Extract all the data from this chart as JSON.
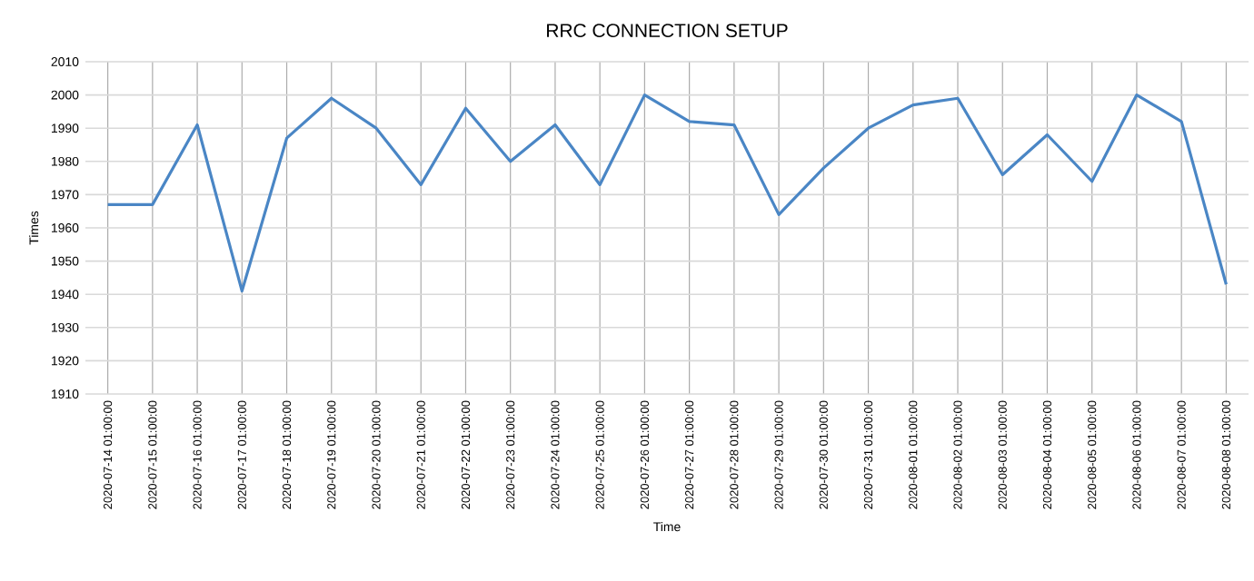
{
  "chart_data": {
    "type": "line",
    "title": "RRC CONNECTION SETUP",
    "xlabel": "Time",
    "ylabel": "Times",
    "categories": [
      "2020-07-14 01:00:00",
      "2020-07-15 01:00:00",
      "2020-07-16 01:00:00",
      "2020-07-17 01:00:00",
      "2020-07-18 01:00:00",
      "2020-07-19 01:00:00",
      "2020-07-20 01:00:00",
      "2020-07-21 01:00:00",
      "2020-07-22 01:00:00",
      "2020-07-23 01:00:00",
      "2020-07-24 01:00:00",
      "2020-07-25 01:00:00",
      "2020-07-26 01:00:00",
      "2020-07-27 01:00:00",
      "2020-07-28 01:00:00",
      "2020-07-29 01:00:00",
      "2020-07-30 01:00:00",
      "2020-07-31 01:00:00",
      "2020-08-01 01:00:00",
      "2020-08-02 01:00:00",
      "2020-08-03 01:00:00",
      "2020-08-04 01:00:00",
      "2020-08-05 01:00:00",
      "2020-08-06 01:00:00",
      "2020-08-07 01:00:00",
      "2020-08-08 01:00:00"
    ],
    "series": [
      {
        "color": "#4a86c5",
        "values": [
          1967,
          1967,
          1991,
          1941,
          1987,
          1999,
          1990,
          1973,
          1996,
          1980,
          1991,
          1973,
          2000,
          1992,
          1991,
          1964,
          1978,
          1990,
          1997,
          1999,
          1976,
          1988,
          1974,
          2000,
          1992,
          1943
        ]
      }
    ],
    "ylim": [
      1910,
      2010
    ],
    "yticks": [
      1910,
      1920,
      1930,
      1940,
      1950,
      1960,
      1970,
      1980,
      1990,
      2000,
      2010
    ],
    "grid": true,
    "line_style": "solid"
  }
}
